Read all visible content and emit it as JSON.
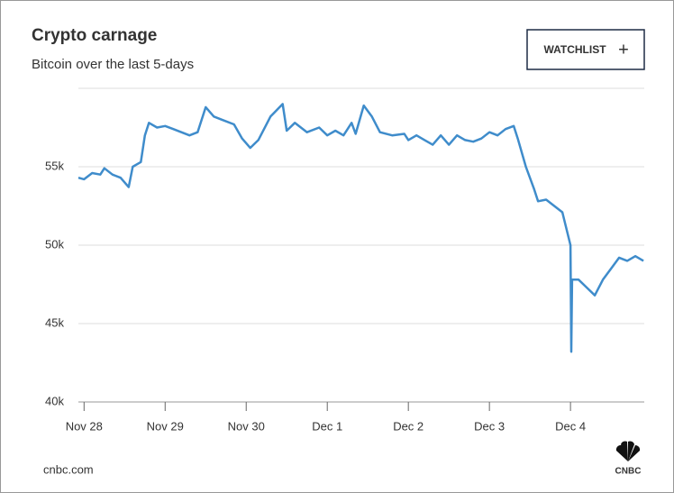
{
  "chart_data": {
    "type": "line",
    "title": "Crypto carnage",
    "subtitle": "Bitcoin over the last 5-days",
    "x": [
      -0.07,
      0,
      0.1,
      0.2,
      0.25,
      0.35,
      0.45,
      0.55,
      0.6,
      0.7,
      0.75,
      0.8,
      0.9,
      1.0,
      1.1,
      1.2,
      1.3,
      1.4,
      1.5,
      1.6,
      1.7,
      1.85,
      1.95,
      2.05,
      2.15,
      2.3,
      2.45,
      2.5,
      2.6,
      2.75,
      2.9,
      3.0,
      3.1,
      3.2,
      3.3,
      3.35,
      3.45,
      3.55,
      3.65,
      3.8,
      3.95,
      4.0,
      4.1,
      4.2,
      4.3,
      4.4,
      4.5,
      4.6,
      4.7,
      4.8,
      4.9,
      5.0,
      5.1,
      5.2,
      5.3,
      5.35,
      5.45,
      5.55,
      5.6,
      5.7,
      5.8,
      5.9,
      6.0,
      6.01,
      6.02,
      6.1,
      6.2,
      6.3,
      6.4,
      6.5,
      6.6,
      6.7,
      6.8,
      6.9
    ],
    "series": [
      {
        "name": "Bitcoin",
        "color": "#3f8ccb",
        "values": [
          54300,
          54200,
          54600,
          54500,
          54900,
          54500,
          54300,
          53700,
          55000,
          55300,
          57000,
          57800,
          57500,
          57600,
          57400,
          57200,
          57000,
          57200,
          58800,
          58200,
          58000,
          57700,
          56800,
          56200,
          56700,
          58200,
          59000,
          57300,
          57800,
          57200,
          57500,
          57000,
          57300,
          57000,
          57800,
          57100,
          58900,
          58200,
          57200,
          57000,
          57100,
          56700,
          57000,
          56700,
          56400,
          57000,
          56400,
          57000,
          56700,
          56600,
          56800,
          57200,
          57000,
          57400,
          57600,
          56800,
          55000,
          53600,
          52800,
          52900,
          52500,
          52100,
          50000,
          43200,
          47800,
          47800,
          47300,
          46800,
          47800,
          48500,
          49200,
          49000,
          49300,
          49000
        ]
      }
    ],
    "xlim": [
      -0.07,
      6.91
    ],
    "xticks": [
      {
        "value": 0,
        "label": "Nov 28"
      },
      {
        "value": 1,
        "label": "Nov 29"
      },
      {
        "value": 2,
        "label": "Nov 30"
      },
      {
        "value": 3,
        "label": "Dec 1"
      },
      {
        "value": 4,
        "label": "Dec 2"
      },
      {
        "value": 5,
        "label": "Dec 3"
      },
      {
        "value": 6,
        "label": "Dec 4"
      }
    ],
    "ylim": [
      40000,
      60000
    ],
    "yticks": [
      {
        "value": 40000,
        "label": "40k"
      },
      {
        "value": 45000,
        "label": "45k"
      },
      {
        "value": 50000,
        "label": "50k"
      },
      {
        "value": 55000,
        "label": "55k"
      }
    ],
    "grid": true
  },
  "button": {
    "label": "WATCHLIST",
    "icon": "+"
  },
  "footer": {
    "source": "cnbc.com",
    "logo": "CNBC"
  }
}
